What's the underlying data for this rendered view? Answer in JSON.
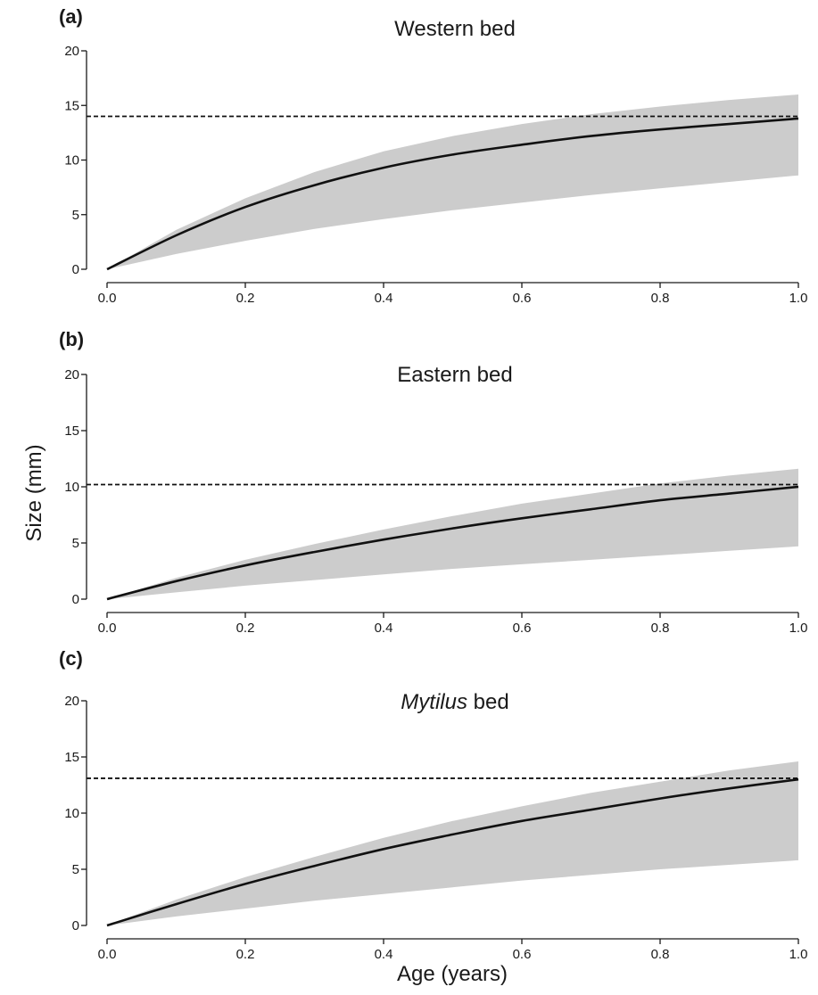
{
  "chart_data": {
    "type": "line",
    "xlabel": "Age (years)",
    "ylabel": "Size (mm)",
    "panels": [
      {
        "letter": "(a)",
        "title_parts": [
          {
            "text": "Western bed",
            "italic": false
          }
        ],
        "xlim": [
          0,
          1
        ],
        "ylim": [
          0,
          20
        ],
        "xticks": [
          "0.0",
          "0.2",
          "0.4",
          "0.6",
          "0.8",
          "1.0"
        ],
        "yticks": [
          "0",
          "5",
          "10",
          "15",
          "20"
        ],
        "asymptote": 14,
        "curve": {
          "x": [
            0,
            0.1,
            0.2,
            0.3,
            0.4,
            0.5,
            0.6,
            0.7,
            0.8,
            0.9,
            1.0
          ],
          "y": [
            0,
            3.1,
            5.7,
            7.7,
            9.3,
            10.5,
            11.4,
            12.2,
            12.8,
            13.3,
            13.8
          ]
        },
        "band_upper": [
          0,
          3.6,
          6.5,
          8.9,
          10.8,
          12.2,
          13.3,
          14.2,
          14.9,
          15.5,
          16.0
        ],
        "band_lower": [
          0,
          1.4,
          2.6,
          3.7,
          4.6,
          5.4,
          6.1,
          6.8,
          7.4,
          8.0,
          8.6
        ]
      },
      {
        "letter": "(b)",
        "title_parts": [
          {
            "text": "Eastern bed",
            "italic": false
          }
        ],
        "xlim": [
          0,
          1
        ],
        "ylim": [
          0,
          20
        ],
        "xticks": [
          "0.0",
          "0.2",
          "0.4",
          "0.6",
          "0.8",
          "1.0"
        ],
        "yticks": [
          "0",
          "5",
          "10",
          "15",
          "20"
        ],
        "asymptote": 10.2,
        "curve": {
          "x": [
            0,
            0.1,
            0.2,
            0.3,
            0.4,
            0.5,
            0.6,
            0.7,
            0.8,
            0.9,
            1.0
          ],
          "y": [
            0,
            1.6,
            3.0,
            4.2,
            5.3,
            6.3,
            7.2,
            8.0,
            8.8,
            9.4,
            10.0
          ]
        },
        "band_upper": [
          0,
          1.9,
          3.5,
          4.9,
          6.2,
          7.4,
          8.5,
          9.4,
          10.3,
          11.0,
          11.6
        ],
        "band_lower": [
          0,
          0.6,
          1.2,
          1.7,
          2.2,
          2.7,
          3.1,
          3.5,
          3.9,
          4.3,
          4.7
        ]
      },
      {
        "letter": "(c)",
        "title_parts": [
          {
            "text": "Mytilus",
            "italic": true
          },
          {
            "text": " bed",
            "italic": false
          }
        ],
        "xlim": [
          0,
          1
        ],
        "ylim": [
          0,
          20
        ],
        "xticks": [
          "0.0",
          "0.2",
          "0.4",
          "0.6",
          "0.8",
          "1.0"
        ],
        "yticks": [
          "0",
          "5",
          "10",
          "15",
          "20"
        ],
        "asymptote": 13.1,
        "curve": {
          "x": [
            0,
            0.1,
            0.2,
            0.3,
            0.4,
            0.5,
            0.6,
            0.7,
            0.8,
            0.9,
            1.0
          ],
          "y": [
            0,
            1.9,
            3.7,
            5.3,
            6.8,
            8.1,
            9.3,
            10.3,
            11.3,
            12.2,
            13.0
          ]
        },
        "band_upper": [
          0,
          2.3,
          4.3,
          6.1,
          7.8,
          9.3,
          10.6,
          11.8,
          12.8,
          13.8,
          14.6
        ],
        "band_lower": [
          0,
          0.8,
          1.5,
          2.2,
          2.8,
          3.4,
          4.0,
          4.5,
          5.0,
          5.4,
          5.8
        ]
      }
    ]
  }
}
